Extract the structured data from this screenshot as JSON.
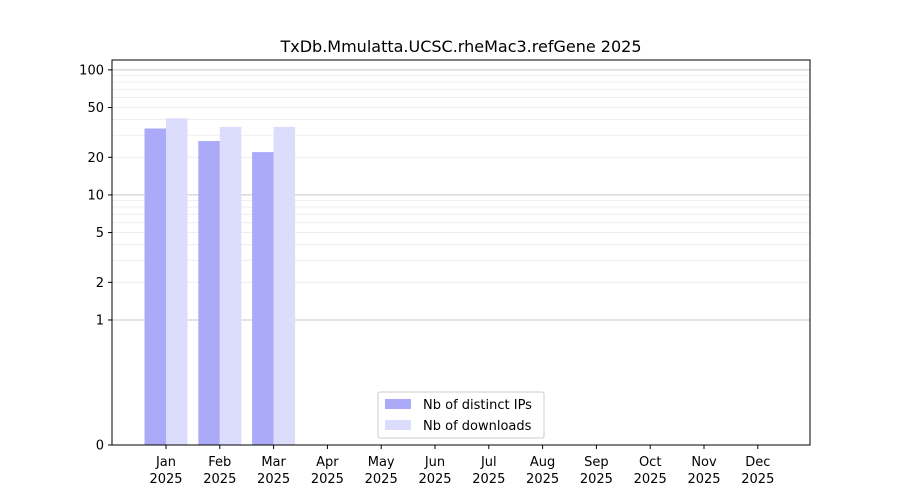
{
  "chart_data": {
    "type": "bar",
    "title": "TxDb.Mmulatta.UCSC.rheMac3.refGene 2025",
    "xlabel": "",
    "ylabel": "",
    "yscale": "symlog",
    "ylim": [
      0,
      120
    ],
    "categories": [
      [
        "Jan",
        "2025"
      ],
      [
        "Feb",
        "2025"
      ],
      [
        "Mar",
        "2025"
      ],
      [
        "Apr",
        "2025"
      ],
      [
        "May",
        "2025"
      ],
      [
        "Jun",
        "2025"
      ],
      [
        "Jul",
        "2025"
      ],
      [
        "Aug",
        "2025"
      ],
      [
        "Sep",
        "2025"
      ],
      [
        "Oct",
        "2025"
      ],
      [
        "Nov",
        "2025"
      ],
      [
        "Dec",
        "2025"
      ]
    ],
    "y_ticks": [
      0,
      1,
      2,
      5,
      10,
      20,
      50,
      100
    ],
    "grid": true,
    "legend_position": "bottom-center",
    "series": [
      {
        "name": "Nb of distinct IPs",
        "color": "#aaaaf8",
        "values": [
          34,
          27,
          22,
          0,
          0,
          0,
          0,
          0,
          0,
          0,
          0,
          0
        ]
      },
      {
        "name": "Nb of downloads",
        "color": "#dcdcfc",
        "values": [
          41,
          35,
          35,
          0,
          0,
          0,
          0,
          0,
          0,
          0,
          0,
          0
        ]
      }
    ]
  }
}
